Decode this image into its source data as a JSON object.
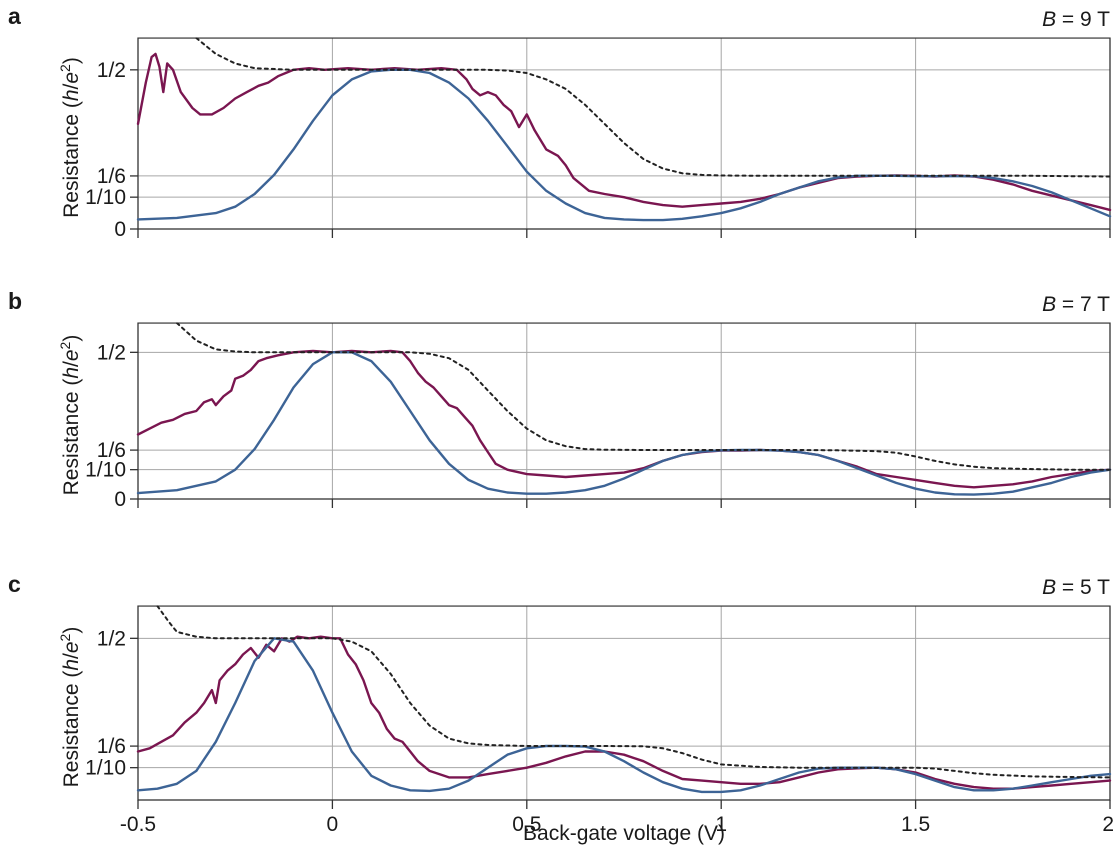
{
  "xlabel": "Back-gate voltage (V)",
  "x_tick_labels": [
    "-0.5",
    "0",
    "0.5",
    "1",
    "1.5",
    "2"
  ],
  "colors": {
    "measured": "#7a1650",
    "simulated": "#3d6496",
    "ideal": "#222222",
    "grid": "#a6a6a6",
    "axes": "#333333"
  },
  "chart_data": [
    {
      "panel": "a",
      "type": "line",
      "field_label": "B = 9 T",
      "ylabel": "Resistance (h/e²)",
      "xlim": [
        -0.5,
        2
      ],
      "ylim": [
        0,
        0.6
      ],
      "grid": true,
      "x_ticks": [
        -0.5,
        0,
        0.5,
        1,
        1.5,
        2
      ],
      "y_ticks": [
        0,
        0.1,
        0.1667,
        0.5
      ],
      "y_tick_labels": [
        "0",
        "1/10",
        "1/6",
        "1/2"
      ],
      "series": [
        {
          "key": "measured",
          "x": [
            -0.5,
            -0.48,
            -0.465,
            -0.455,
            -0.445,
            -0.435,
            -0.425,
            -0.41,
            -0.39,
            -0.36,
            -0.34,
            -0.31,
            -0.28,
            -0.25,
            -0.22,
            -0.19,
            -0.165,
            -0.14,
            -0.12,
            -0.1,
            -0.06,
            -0.02,
            0.04,
            0.1,
            0.16,
            0.22,
            0.28,
            0.32,
            0.345,
            0.36,
            0.38,
            0.4,
            0.42,
            0.44,
            0.46,
            0.48,
            0.5,
            0.52,
            0.55,
            0.58,
            0.6,
            0.62,
            0.66,
            0.7,
            0.75,
            0.8,
            0.85,
            0.9,
            0.95,
            1.0,
            1.05,
            1.1,
            1.15,
            1.2,
            1.25,
            1.3,
            1.35,
            1.4,
            1.45,
            1.5,
            1.55,
            1.6,
            1.65,
            1.7,
            1.75,
            1.8,
            1.85,
            1.9,
            1.95,
            2.0
          ],
          "y": [
            0.33,
            0.46,
            0.54,
            0.55,
            0.51,
            0.43,
            0.52,
            0.5,
            0.43,
            0.38,
            0.36,
            0.36,
            0.38,
            0.41,
            0.43,
            0.45,
            0.46,
            0.48,
            0.49,
            0.5,
            0.505,
            0.5,
            0.505,
            0.5,
            0.505,
            0.5,
            0.505,
            0.5,
            0.47,
            0.44,
            0.42,
            0.43,
            0.42,
            0.39,
            0.37,
            0.32,
            0.36,
            0.31,
            0.25,
            0.23,
            0.2,
            0.16,
            0.12,
            0.11,
            0.1,
            0.085,
            0.075,
            0.07,
            0.075,
            0.08,
            0.085,
            0.095,
            0.11,
            0.13,
            0.145,
            0.16,
            0.165,
            0.167,
            0.168,
            0.167,
            0.165,
            0.168,
            0.165,
            0.155,
            0.14,
            0.12,
            0.105,
            0.09,
            0.075,
            0.06
          ]
        },
        {
          "key": "simulated",
          "x": [
            -0.5,
            -0.4,
            -0.3,
            -0.25,
            -0.2,
            -0.15,
            -0.1,
            -0.05,
            0,
            0.05,
            0.1,
            0.15,
            0.2,
            0.25,
            0.3,
            0.35,
            0.4,
            0.45,
            0.5,
            0.55,
            0.6,
            0.65,
            0.7,
            0.75,
            0.8,
            0.85,
            0.9,
            0.95,
            1.0,
            1.05,
            1.1,
            1.15,
            1.2,
            1.25,
            1.3,
            1.35,
            1.4,
            1.45,
            1.5,
            1.55,
            1.6,
            1.65,
            1.7,
            1.75,
            1.8,
            1.85,
            1.9,
            1.95,
            2.0
          ],
          "y": [
            0.03,
            0.035,
            0.05,
            0.07,
            0.11,
            0.17,
            0.25,
            0.34,
            0.42,
            0.47,
            0.495,
            0.5,
            0.5,
            0.49,
            0.46,
            0.41,
            0.34,
            0.26,
            0.18,
            0.12,
            0.08,
            0.05,
            0.035,
            0.03,
            0.028,
            0.028,
            0.032,
            0.04,
            0.05,
            0.065,
            0.085,
            0.11,
            0.13,
            0.15,
            0.162,
            0.167,
            0.167,
            0.167,
            0.166,
            0.166,
            0.166,
            0.166,
            0.16,
            0.15,
            0.135,
            0.115,
            0.09,
            0.065,
            0.04
          ]
        },
        {
          "key": "ideal",
          "x": [
            -0.35,
            -0.3,
            -0.25,
            -0.2,
            -0.1,
            0,
            0.1,
            0.2,
            0.3,
            0.4,
            0.45,
            0.5,
            0.55,
            0.6,
            0.65,
            0.7,
            0.75,
            0.8,
            0.85,
            0.9,
            0.95,
            1.0,
            1.1,
            1.2,
            1.3,
            1.4,
            1.5,
            1.6,
            1.7,
            1.8,
            1.9,
            2.0
          ],
          "y": [
            0.6,
            0.55,
            0.52,
            0.505,
            0.5,
            0.5,
            0.5,
            0.5,
            0.5,
            0.5,
            0.498,
            0.49,
            0.47,
            0.44,
            0.39,
            0.33,
            0.27,
            0.22,
            0.19,
            0.175,
            0.17,
            0.168,
            0.167,
            0.167,
            0.167,
            0.167,
            0.167,
            0.167,
            0.167,
            0.167,
            0.166,
            0.165
          ]
        }
      ]
    },
    {
      "panel": "b",
      "type": "line",
      "field_label": "B = 7 T",
      "ylabel": "Resistance (h/e²)",
      "xlim": [
        -0.5,
        2
      ],
      "ylim": [
        0,
        0.6
      ],
      "grid": true,
      "x_ticks": [
        -0.5,
        0,
        0.5,
        1,
        1.5,
        2
      ],
      "y_ticks": [
        0,
        0.1,
        0.1667,
        0.5
      ],
      "y_tick_labels": [
        "0",
        "1/10",
        "1/6",
        "1/2"
      ],
      "series": [
        {
          "key": "measured",
          "x": [
            -0.5,
            -0.47,
            -0.44,
            -0.41,
            -0.38,
            -0.35,
            -0.33,
            -0.31,
            -0.3,
            -0.28,
            -0.26,
            -0.25,
            -0.23,
            -0.21,
            -0.19,
            -0.17,
            -0.14,
            -0.1,
            -0.05,
            0,
            0.05,
            0.1,
            0.15,
            0.18,
            0.2,
            0.22,
            0.24,
            0.26,
            0.28,
            0.3,
            0.32,
            0.34,
            0.36,
            0.38,
            0.4,
            0.42,
            0.45,
            0.5,
            0.55,
            0.6,
            0.65,
            0.7,
            0.75,
            0.8,
            0.85,
            0.9,
            0.95,
            1.0,
            1.05,
            1.1,
            1.15,
            1.2,
            1.25,
            1.3,
            1.35,
            1.4,
            1.45,
            1.5,
            1.55,
            1.6,
            1.65,
            1.7,
            1.75,
            1.8,
            1.85,
            1.9,
            1.95,
            2.0
          ],
          "y": [
            0.22,
            0.24,
            0.26,
            0.27,
            0.29,
            0.3,
            0.33,
            0.34,
            0.32,
            0.35,
            0.37,
            0.41,
            0.42,
            0.44,
            0.47,
            0.48,
            0.49,
            0.5,
            0.505,
            0.5,
            0.505,
            0.5,
            0.505,
            0.5,
            0.47,
            0.43,
            0.4,
            0.38,
            0.35,
            0.32,
            0.31,
            0.28,
            0.25,
            0.2,
            0.16,
            0.12,
            0.1,
            0.085,
            0.08,
            0.075,
            0.08,
            0.085,
            0.09,
            0.105,
            0.13,
            0.15,
            0.16,
            0.165,
            0.165,
            0.167,
            0.165,
            0.16,
            0.15,
            0.13,
            0.11,
            0.085,
            0.075,
            0.065,
            0.055,
            0.045,
            0.04,
            0.045,
            0.05,
            0.06,
            0.075,
            0.085,
            0.095,
            0.1
          ]
        },
        {
          "key": "simulated",
          "x": [
            -0.5,
            -0.4,
            -0.3,
            -0.25,
            -0.2,
            -0.15,
            -0.1,
            -0.05,
            0,
            0.05,
            0.1,
            0.15,
            0.2,
            0.25,
            0.3,
            0.35,
            0.4,
            0.45,
            0.5,
            0.55,
            0.6,
            0.65,
            0.7,
            0.75,
            0.8,
            0.85,
            0.9,
            0.95,
            1.0,
            1.05,
            1.1,
            1.15,
            1.2,
            1.25,
            1.3,
            1.35,
            1.4,
            1.45,
            1.5,
            1.55,
            1.6,
            1.65,
            1.7,
            1.75,
            1.8,
            1.85,
            1.9,
            1.95,
            2.0
          ],
          "y": [
            0.02,
            0.03,
            0.06,
            0.1,
            0.17,
            0.27,
            0.38,
            0.46,
            0.5,
            0.5,
            0.47,
            0.4,
            0.3,
            0.2,
            0.12,
            0.065,
            0.035,
            0.022,
            0.018,
            0.018,
            0.022,
            0.03,
            0.045,
            0.07,
            0.1,
            0.13,
            0.15,
            0.162,
            0.166,
            0.167,
            0.167,
            0.165,
            0.16,
            0.15,
            0.13,
            0.105,
            0.08,
            0.055,
            0.035,
            0.022,
            0.016,
            0.015,
            0.018,
            0.025,
            0.04,
            0.055,
            0.075,
            0.09,
            0.1
          ]
        },
        {
          "key": "ideal",
          "x": [
            -0.4,
            -0.35,
            -0.3,
            -0.25,
            -0.2,
            -0.1,
            0,
            0.1,
            0.2,
            0.25,
            0.3,
            0.35,
            0.4,
            0.45,
            0.5,
            0.55,
            0.6,
            0.65,
            0.7,
            0.8,
            0.9,
            1.0,
            1.1,
            1.2,
            1.3,
            1.4,
            1.45,
            1.5,
            1.55,
            1.6,
            1.65,
            1.7,
            1.8,
            1.9,
            2.0
          ],
          "y": [
            0.6,
            0.54,
            0.51,
            0.503,
            0.5,
            0.5,
            0.5,
            0.5,
            0.5,
            0.495,
            0.48,
            0.44,
            0.37,
            0.3,
            0.24,
            0.2,
            0.18,
            0.17,
            0.168,
            0.167,
            0.167,
            0.167,
            0.167,
            0.167,
            0.166,
            0.163,
            0.158,
            0.145,
            0.13,
            0.118,
            0.11,
            0.105,
            0.102,
            0.1,
            0.1
          ]
        }
      ]
    },
    {
      "panel": "c",
      "type": "line",
      "field_label": "B = 5 T",
      "ylabel": "Resistance (h/e²)",
      "xlim": [
        -0.5,
        2
      ],
      "ylim": [
        0,
        0.6
      ],
      "grid": true,
      "x_ticks": [
        -0.5,
        0,
        0.5,
        1,
        1.5,
        2
      ],
      "y_ticks": [
        0.1,
        0.1667,
        0.5
      ],
      "y_tick_labels": [
        "1/10",
        "1/6",
        "1/2"
      ],
      "series": [
        {
          "key": "measured",
          "x": [
            -0.5,
            -0.47,
            -0.44,
            -0.41,
            -0.38,
            -0.35,
            -0.33,
            -0.31,
            -0.3,
            -0.29,
            -0.27,
            -0.25,
            -0.23,
            -0.21,
            -0.19,
            -0.17,
            -0.15,
            -0.13,
            -0.11,
            -0.09,
            -0.06,
            -0.03,
            0,
            0.02,
            0.04,
            0.06,
            0.08,
            0.1,
            0.12,
            0.14,
            0.16,
            0.18,
            0.2,
            0.22,
            0.25,
            0.3,
            0.35,
            0.4,
            0.45,
            0.5,
            0.55,
            0.6,
            0.65,
            0.7,
            0.75,
            0.8,
            0.85,
            0.9,
            0.95,
            1.0,
            1.05,
            1.1,
            1.15,
            1.2,
            1.25,
            1.3,
            1.35,
            1.4,
            1.45,
            1.5,
            1.55,
            1.6,
            1.65,
            1.7,
            1.75,
            1.8,
            1.85,
            1.9,
            1.95,
            2.0
          ],
          "y": [
            0.15,
            0.16,
            0.18,
            0.2,
            0.24,
            0.27,
            0.3,
            0.34,
            0.3,
            0.37,
            0.4,
            0.42,
            0.45,
            0.47,
            0.44,
            0.48,
            0.46,
            0.5,
            0.49,
            0.505,
            0.5,
            0.505,
            0.5,
            0.5,
            0.45,
            0.42,
            0.37,
            0.3,
            0.27,
            0.22,
            0.19,
            0.18,
            0.15,
            0.12,
            0.09,
            0.07,
            0.07,
            0.08,
            0.09,
            0.1,
            0.115,
            0.135,
            0.15,
            0.15,
            0.14,
            0.12,
            0.09,
            0.065,
            0.06,
            0.055,
            0.05,
            0.05,
            0.055,
            0.07,
            0.085,
            0.095,
            0.098,
            0.1,
            0.095,
            0.085,
            0.065,
            0.05,
            0.04,
            0.035,
            0.035,
            0.04,
            0.045,
            0.05,
            0.055,
            0.06
          ]
        },
        {
          "key": "simulated",
          "x": [
            -0.5,
            -0.45,
            -0.4,
            -0.35,
            -0.3,
            -0.25,
            -0.2,
            -0.15,
            -0.1,
            -0.05,
            0,
            0.05,
            0.1,
            0.15,
            0.2,
            0.25,
            0.3,
            0.35,
            0.4,
            0.45,
            0.5,
            0.55,
            0.6,
            0.65,
            0.7,
            0.75,
            0.8,
            0.85,
            0.9,
            0.95,
            1.0,
            1.05,
            1.1,
            1.15,
            1.2,
            1.25,
            1.3,
            1.35,
            1.4,
            1.45,
            1.5,
            1.55,
            1.6,
            1.65,
            1.7,
            1.75,
            1.8,
            1.85,
            1.9,
            1.95,
            2.0
          ],
          "y": [
            0.03,
            0.035,
            0.05,
            0.09,
            0.18,
            0.3,
            0.43,
            0.5,
            0.49,
            0.4,
            0.27,
            0.15,
            0.075,
            0.045,
            0.03,
            0.028,
            0.035,
            0.06,
            0.1,
            0.14,
            0.16,
            0.167,
            0.167,
            0.165,
            0.15,
            0.12,
            0.085,
            0.055,
            0.035,
            0.025,
            0.025,
            0.03,
            0.045,
            0.065,
            0.085,
            0.097,
            0.1,
            0.1,
            0.1,
            0.095,
            0.08,
            0.06,
            0.04,
            0.03,
            0.03,
            0.035,
            0.045,
            0.055,
            0.065,
            0.075,
            0.08
          ]
        },
        {
          "key": "ideal",
          "x": [
            -0.45,
            -0.42,
            -0.4,
            -0.35,
            -0.3,
            -0.2,
            -0.1,
            0,
            0.05,
            0.1,
            0.15,
            0.2,
            0.25,
            0.3,
            0.35,
            0.4,
            0.5,
            0.6,
            0.7,
            0.8,
            0.85,
            0.9,
            0.95,
            1.0,
            1.1,
            1.2,
            1.3,
            1.4,
            1.5,
            1.55,
            1.6,
            1.65,
            1.7,
            1.8,
            1.9,
            2.0
          ],
          "y": [
            0.6,
            0.55,
            0.52,
            0.505,
            0.5,
            0.5,
            0.5,
            0.5,
            0.49,
            0.46,
            0.39,
            0.3,
            0.23,
            0.19,
            0.175,
            0.17,
            0.167,
            0.167,
            0.167,
            0.166,
            0.16,
            0.145,
            0.125,
            0.11,
            0.102,
            0.1,
            0.1,
            0.1,
            0.1,
            0.097,
            0.09,
            0.083,
            0.078,
            0.073,
            0.071,
            0.07
          ]
        }
      ]
    }
  ]
}
